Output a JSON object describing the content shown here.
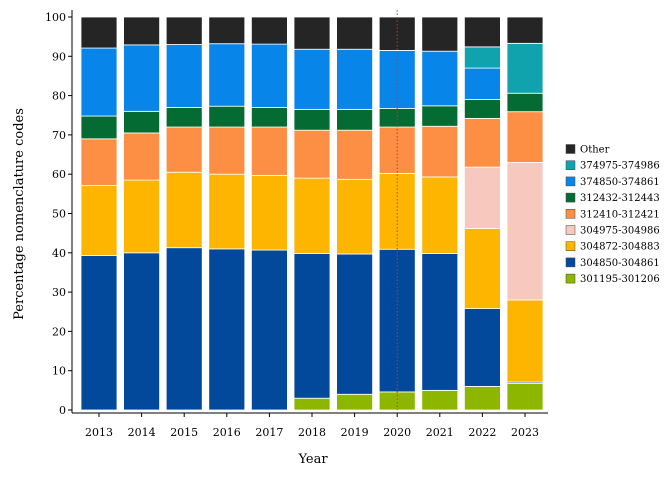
{
  "chart_data": {
    "type": "bar",
    "stacked": true,
    "title": "",
    "xlabel": "Year",
    "ylabel": "Percentage nomenclature codes",
    "ylim": [
      0,
      100
    ],
    "yticks": [
      0,
      10,
      20,
      30,
      40,
      50,
      60,
      70,
      80,
      90,
      100
    ],
    "grid": false,
    "legend_position": "right",
    "reference_line": {
      "x": "2020",
      "style": "dotted",
      "color": "#c0392b"
    },
    "categories": [
      "2013",
      "2014",
      "2015",
      "2016",
      "2017",
      "2018",
      "2019",
      "2020",
      "2021",
      "2022",
      "2023"
    ],
    "series": [
      {
        "name": "301195-301206",
        "color": "#8db600",
        "values": [
          0,
          0,
          0,
          0,
          0,
          3.0,
          4.0,
          4.6,
          5.0,
          6.0,
          6.8
        ]
      },
      {
        "name": "304850-304861",
        "color": "#02499b",
        "values": [
          39.3,
          40.0,
          41.3,
          41.0,
          40.7,
          36.8,
          35.7,
          36.3,
          34.8,
          19.8,
          0.3
        ]
      },
      {
        "name": "304872-304883",
        "color": "#fdb500",
        "values": [
          17.8,
          18.5,
          19.2,
          19.0,
          19.0,
          19.2,
          19.0,
          19.3,
          19.5,
          20.4,
          20.9
        ]
      },
      {
        "name": "304975-304986",
        "color": "#f7c8bd",
        "values": [
          0,
          0,
          0,
          0,
          0,
          0,
          0,
          0,
          0,
          15.6,
          35.0
        ]
      },
      {
        "name": "312410-312421",
        "color": "#fc8f44",
        "values": [
          11.9,
          12.0,
          11.5,
          12.0,
          12.3,
          12.2,
          12.5,
          11.8,
          12.9,
          12.4,
          12.9
        ]
      },
      {
        "name": "312432-312443",
        "color": "#046c32",
        "values": [
          5.8,
          5.5,
          5.0,
          5.3,
          5.0,
          5.3,
          5.3,
          4.7,
          5.2,
          4.8,
          4.7
        ]
      },
      {
        "name": "374850-374861",
        "color": "#0885e8",
        "values": [
          17.3,
          16.9,
          16.0,
          15.9,
          16.1,
          15.3,
          15.3,
          14.8,
          13.9,
          8.0,
          0
        ]
      },
      {
        "name": "374975-374986",
        "color": "#10a3ad",
        "values": [
          0,
          0,
          0,
          0,
          0,
          0,
          0,
          0,
          0,
          5.4,
          12.7
        ]
      },
      {
        "name": "Other",
        "color": "#252525",
        "values": [
          7.9,
          7.1,
          7.0,
          6.8,
          6.9,
          8.2,
          8.2,
          8.5,
          8.7,
          7.6,
          6.7
        ]
      }
    ],
    "legend_order": [
      "Other",
      "374975-374986",
      "374850-374861",
      "312432-312443",
      "312410-312421",
      "304975-304986",
      "304872-304883",
      "304850-304861",
      "301195-301206"
    ]
  }
}
